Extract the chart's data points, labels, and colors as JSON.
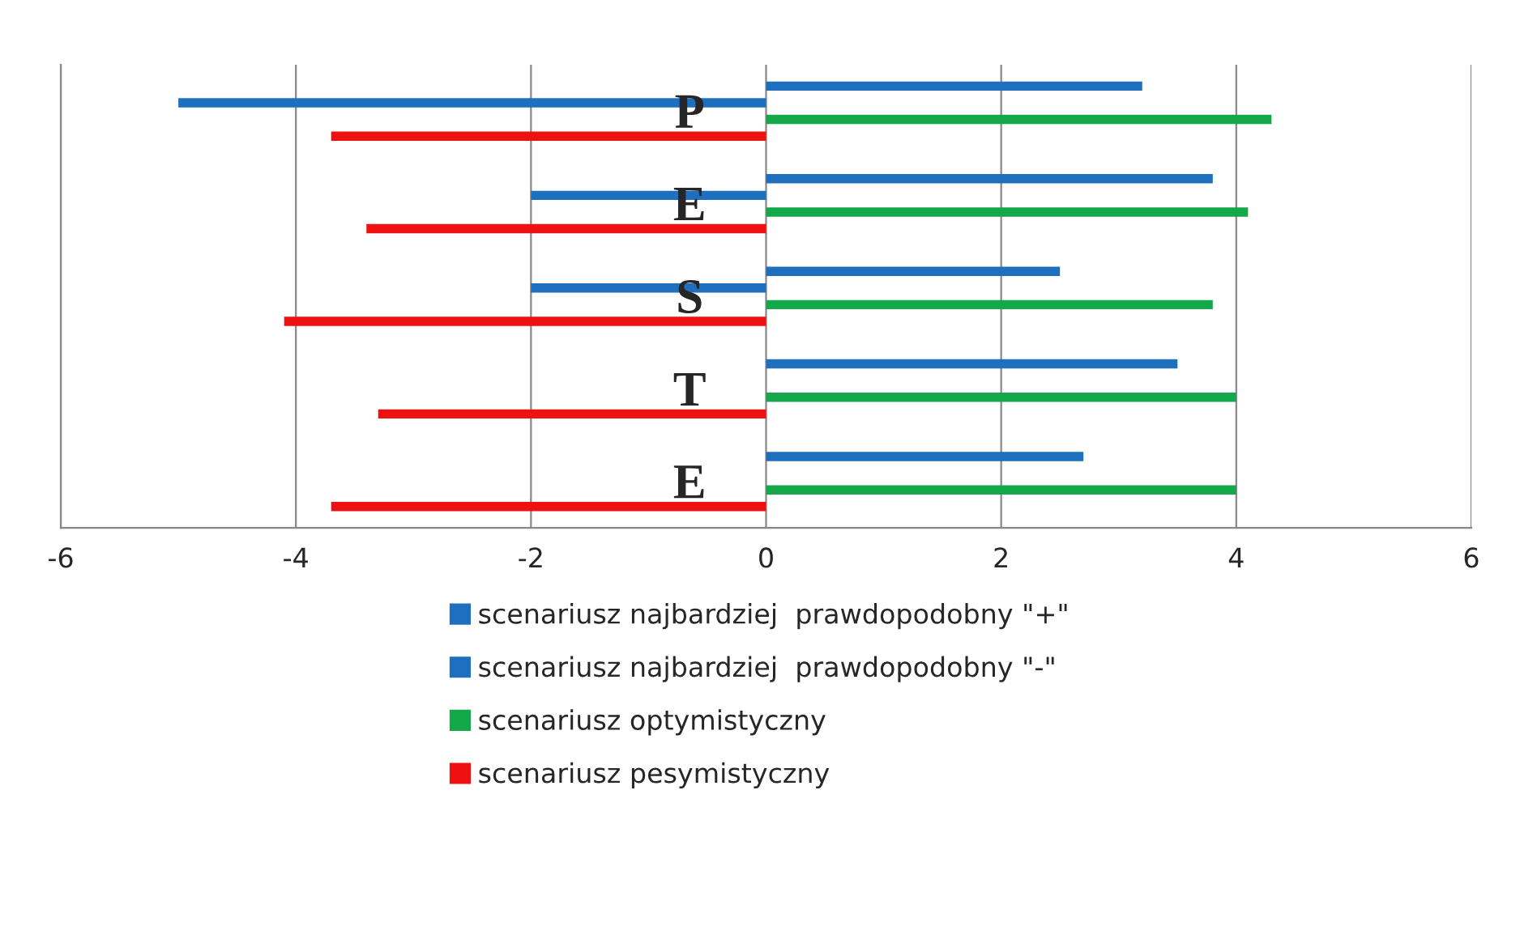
{
  "chart_data": {
    "type": "bar",
    "orientation": "horizontal",
    "categories": [
      "P",
      "E",
      "S",
      "T",
      "E"
    ],
    "series": [
      {
        "name": "scenariusz najbardziej  prawdopodobny \"+\"",
        "color": "#1f6fbf",
        "values": [
          3.2,
          3.8,
          2.5,
          3.5,
          2.7
        ]
      },
      {
        "name": "scenariusz najbardziej  prawdopodobny \"-\"",
        "color": "#1f6fbf",
        "values": [
          -5.0,
          -2.0,
          -2.0,
          null,
          null
        ]
      },
      {
        "name": "scenariusz optymistyczny",
        "color": "#14a84a",
        "values": [
          4.3,
          4.1,
          3.8,
          4.0,
          4.0
        ]
      },
      {
        "name": "scenariusz pesymistyczny",
        "color": "#ee1111",
        "values": [
          -3.7,
          -3.4,
          -4.1,
          -3.3,
          -3.7
        ]
      }
    ],
    "xlim": [
      -6,
      6
    ],
    "xticks": [
      -6,
      -4,
      -2,
      0,
      2,
      4,
      6
    ],
    "grid": "x",
    "legend": "bottom"
  }
}
